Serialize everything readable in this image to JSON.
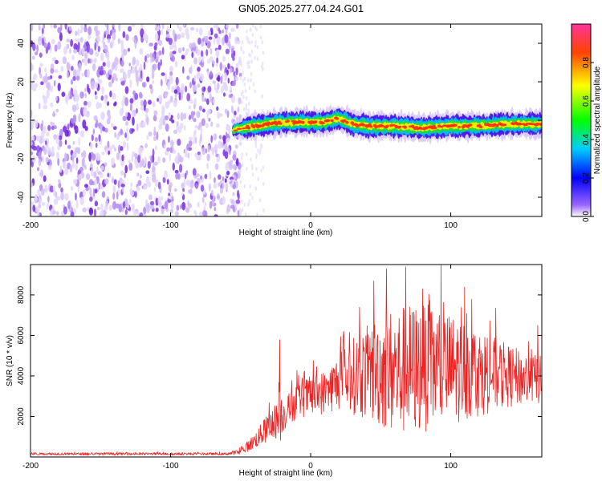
{
  "title": "GN05.2025.277.04.24.G01",
  "chart_data": [
    {
      "type": "heatmap",
      "xlabel": "Height of straight line (km)",
      "ylabel": "Frequency (Hz)",
      "xlim": [
        -200,
        165
      ],
      "ylim": [
        -50,
        50
      ],
      "xticks": [
        -200,
        -100,
        0,
        100
      ],
      "xtick_labels": [
        "-200",
        "-100",
        "0",
        "100"
      ],
      "yticks": [
        -40,
        -20,
        0,
        20,
        40
      ],
      "ytick_labels": [
        "-40",
        "-20",
        "0",
        "20",
        "40"
      ],
      "noise_region_x": [
        -200,
        -50
      ],
      "signal_track": {
        "x": [
          -55,
          -40,
          -20,
          0,
          10,
          20,
          30,
          40,
          60,
          80,
          100,
          120,
          140,
          165
        ],
        "frequency": [
          -5,
          -3,
          -1,
          -1,
          -1,
          1,
          -2,
          -3,
          -3,
          -4,
          -3,
          -3,
          -2,
          -2
        ]
      },
      "colorbar": {
        "label": "Normalized spectral amplitude",
        "range": [
          0,
          1
        ],
        "ticks": [
          0.0,
          0.2,
          0.4,
          0.6,
          0.8
        ],
        "tick_labels": [
          "0.0",
          "0.2",
          "0.4",
          "0.6",
          "0.8"
        ]
      }
    },
    {
      "type": "line",
      "xlabel": "Height of straight line (km)",
      "ylabel": "SNR (10 * v/v)",
      "xlim": [
        -200,
        165
      ],
      "ylim": [
        0,
        9500
      ],
      "xticks": [
        -200,
        -100,
        0,
        100
      ],
      "xtick_labels": [
        "-200",
        "-100",
        "0",
        "100"
      ],
      "yticks": [
        2000,
        4000,
        6000,
        8000
      ],
      "ytick_labels": [
        "2000",
        "4000",
        "6000",
        "8000"
      ],
      "series_color": "#ee2222",
      "envelope": {
        "x": [
          -200,
          -60,
          -50,
          -40,
          -25,
          -22,
          -20,
          -10,
          0,
          10,
          20,
          30,
          45,
          50,
          60,
          70,
          80,
          90,
          100,
          110,
          120,
          130,
          140,
          150,
          165
        ],
        "mean": [
          150,
          150,
          250,
          800,
          1800,
          2000,
          2000,
          2800,
          3000,
          3200,
          3700,
          4000,
          4200,
          4300,
          4200,
          4300,
          4400,
          4400,
          4300,
          4300,
          4200,
          4100,
          4000,
          3900,
          3800
        ],
        "spread": [
          60,
          60,
          150,
          400,
          900,
          1500,
          800,
          900,
          1000,
          1100,
          1400,
          1900,
          2600,
          2900,
          3200,
          3300,
          3200,
          3000,
          2800,
          2500,
          2200,
          1900,
          1600,
          1400,
          1200
        ]
      },
      "peaks": [
        {
          "x": -22,
          "y": 5800
        },
        {
          "x": 45,
          "y": 8700
        },
        {
          "x": 54,
          "y": 9300
        },
        {
          "x": 68,
          "y": 9400
        },
        {
          "x": 80,
          "y": 8300
        },
        {
          "x": 110,
          "y": 8400
        },
        {
          "x": 115,
          "y": 7800
        },
        {
          "x": 162,
          "y": 6500
        }
      ]
    }
  ]
}
